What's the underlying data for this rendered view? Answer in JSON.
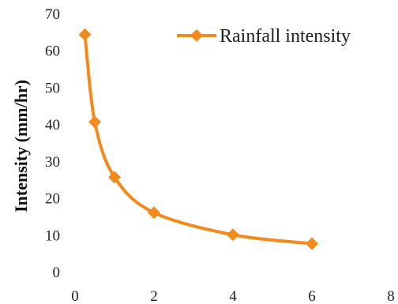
{
  "chart_data": {
    "type": "line",
    "title": "",
    "xlabel": "",
    "ylabel": "Intensity (mm/hr)",
    "xlim": [
      0,
      8
    ],
    "ylim": [
      0,
      70
    ],
    "x_ticks": [
      0,
      2,
      4,
      6,
      8
    ],
    "y_ticks": [
      0,
      10,
      20,
      30,
      40,
      50,
      60,
      70
    ],
    "grid": false,
    "legend_position": "top-right",
    "smooth": true,
    "series": [
      {
        "name": "Rainfall intensity",
        "color": "#f28a1c",
        "marker": "diamond",
        "x": [
          0.25,
          0.5,
          1,
          2,
          4,
          6
        ],
        "y": [
          64.5,
          40.8,
          25.8,
          16.2,
          10.2,
          7.8
        ]
      }
    ]
  }
}
